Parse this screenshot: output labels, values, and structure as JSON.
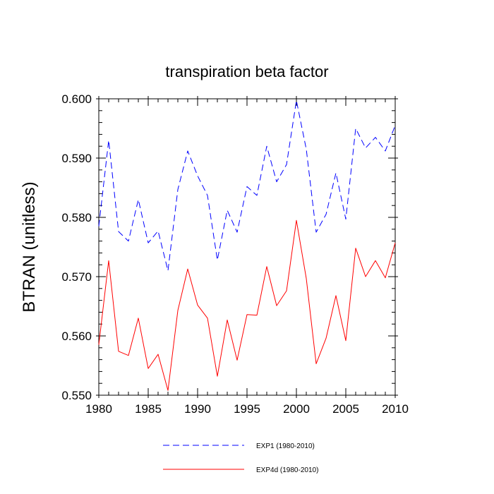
{
  "chart_data": {
    "type": "line",
    "title": "transpiration beta factor",
    "xlabel": "",
    "ylabel": "BTRAN  (unitless)",
    "xlim": [
      1980,
      2010
    ],
    "ylim": [
      0.55,
      0.6
    ],
    "x_ticks": [
      1980,
      1985,
      1990,
      1995,
      2000,
      2005,
      2010
    ],
    "x_tick_labels": [
      "1980",
      "1985",
      "1990",
      "1995",
      "2000",
      "2005",
      "2010"
    ],
    "y_ticks": [
      0.55,
      0.56,
      0.57,
      0.58,
      0.59,
      0.6
    ],
    "y_tick_labels": [
      "0.550",
      "0.560",
      "0.570",
      "0.580",
      "0.590",
      "0.600"
    ],
    "grid": false,
    "legend_position": "bottom",
    "x": [
      1980,
      1981,
      1982,
      1983,
      1984,
      1985,
      1986,
      1987,
      1988,
      1989,
      1990,
      1991,
      1992,
      1993,
      1994,
      1995,
      1996,
      1997,
      1998,
      1999,
      2000,
      2001,
      2002,
      2003,
      2004,
      2005,
      2006,
      2007,
      2008,
      2009,
      2010
    ],
    "series": [
      {
        "name": "EXP1 (1980-2010)",
        "color": "#0000ff",
        "dash": "dashed",
        "values": [
          0.5785,
          0.593,
          0.5776,
          0.576,
          0.583,
          0.5757,
          0.5777,
          0.571,
          0.5847,
          0.5912,
          0.587,
          0.5837,
          0.5728,
          0.5812,
          0.5775,
          0.5852,
          0.5837,
          0.592,
          0.586,
          0.5889,
          0.5997,
          0.5915,
          0.5775,
          0.5805,
          0.5875,
          0.5797,
          0.595,
          0.5917,
          0.5935,
          0.5912,
          0.5955
        ]
      },
      {
        "name": "EXP4d (1980-2010)",
        "color": "#ff0000",
        "dash": "solid",
        "values": [
          0.5585,
          0.5727,
          0.5574,
          0.5567,
          0.563,
          0.5545,
          0.5569,
          0.5508,
          0.5643,
          0.5713,
          0.5652,
          0.563,
          0.5532,
          0.5627,
          0.5559,
          0.5636,
          0.5635,
          0.5717,
          0.5651,
          0.5676,
          0.5795,
          0.5697,
          0.5553,
          0.5596,
          0.5668,
          0.5592,
          0.5748,
          0.57,
          0.5727,
          0.5698,
          0.5757
        ]
      }
    ]
  }
}
